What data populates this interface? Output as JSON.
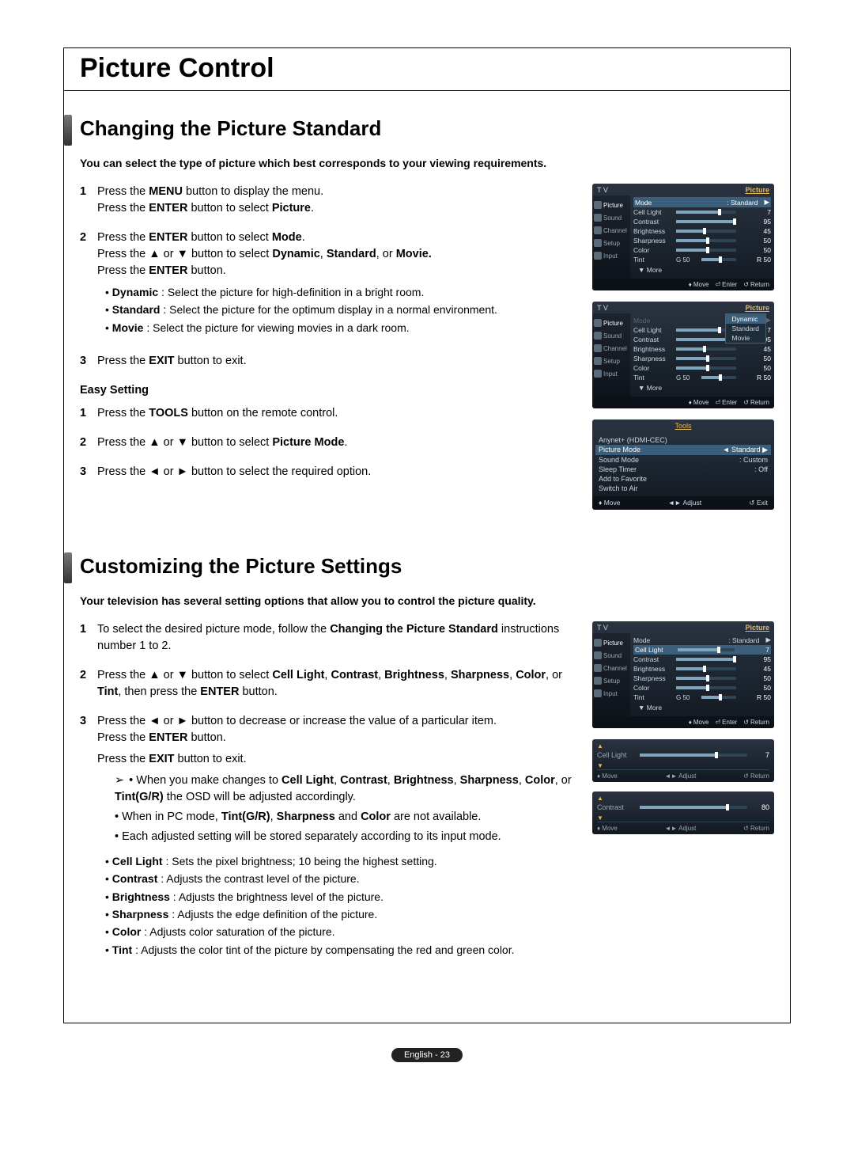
{
  "page": {
    "title": "Picture Control",
    "footer": "English - 23"
  },
  "section1": {
    "heading": "Changing the Picture Standard",
    "intro": "You can select the type of picture which best corresponds to your viewing requirements.",
    "step1a": "Press the ",
    "step1a_b": "MENU",
    "step1a2": " button to display the menu.",
    "step1b": "Press the ",
    "step1b_b": "ENTER",
    "step1b2": " button to select ",
    "step1b_b2": "Picture",
    "step1b3": ".",
    "step2a": "Press the ",
    "step2a_b": "ENTER",
    "step2a2": " button to select ",
    "step2a_b2": "Mode",
    "step2a3": ".",
    "step2b": "Press the ▲ or ▼ button to select ",
    "step2b_b1": "Dynamic",
    "step2b_m1": ", ",
    "step2b_b2": "Standard",
    "step2b_m2": ", or ",
    "step2b_b3": "Movie.",
    "step2c": "Press the ",
    "step2c_b": "ENTER",
    "step2c2": " button.",
    "b1_b": "Dynamic",
    "b1": " : Select the picture for high-definition in a bright room.",
    "b2_b": "Standard",
    "b2": " : Select the picture for the optimum display in a normal environment.",
    "b3_b": "Movie",
    "b3": " : Select the picture for viewing movies in a dark room.",
    "step3": "Press the ",
    "step3_b": "EXIT",
    "step3_2": " button to exit.",
    "easy_h": "Easy Setting",
    "e1": "Press the ",
    "e1_b": "TOOLS",
    "e1_2": " button on the remote control.",
    "e2": "Press the ▲ or ▼ button to select ",
    "e2_b": "Picture Mode",
    "e2_2": ".",
    "e3": "Press the ◄ or ► button to select the required option."
  },
  "section2": {
    "heading": "Customizing the Picture Settings",
    "intro": "Your television has several setting options that allow you to control the picture quality.",
    "s1a": "To select the desired picture mode, follow the ",
    "s1b": "Changing the Picture Standard",
    "s1c": " instructions number 1 to 2.",
    "s2a": "Press the ▲ or ▼ button to select ",
    "s2b": "Cell Light",
    "s2m1": ", ",
    "s2c": "Contrast",
    "s2m2": ", ",
    "s2d": "Brightness",
    "s2m3": ", ",
    "s2e": "Sharpness",
    "s2m4": ", ",
    "s2f": "Color",
    "s2m5": ", or ",
    "s2g": "Tint",
    "s2m6": ", then press the ",
    "s2h": "ENTER",
    "s2m7": " button.",
    "s3a": "Press the ◄ or ► button to decrease or increase the value of a particular item.",
    "s3b": "Press the ",
    "s3c": "ENTER",
    "s3d": " button.",
    "s3e": "Press the ",
    "s3f": "EXIT",
    "s3g": " button to exit.",
    "n1a": "When you make changes to ",
    "n1b": "Cell Light",
    "n1m1": ", ",
    "n1c": "Contrast",
    "n1m2": ", ",
    "n1d": "Brightness",
    "n1m3": ", ",
    "n1e": "Sharpness",
    "n1m4": ", ",
    "n1f": "Color",
    "n1m5": ", or ",
    "n1g": "Tint(G/R)",
    "n1m6": " the OSD will be adjusted accordingly.",
    "n2a": "When in PC mode, ",
    "n2b": "Tint(G/R)",
    "n2m1": ", ",
    "n2c": "Sharpness",
    "n2m2": " and ",
    "n2d": "Color",
    "n2m3": " are not available.",
    "n3": "Each adjusted setting will be stored separately according to its input mode.",
    "d1_b": "Cell Light",
    "d1": " : Sets the pixel brightness; 10 being the highest setting.",
    "d2_b": "Contrast",
    "d2": " : Adjusts the contrast level of the picture.",
    "d3_b": "Brightness",
    "d3": " : Adjusts the brightness level of the picture.",
    "d4_b": "Sharpness",
    "d4": " : Adjusts the edge definition of the picture.",
    "d5_b": "Color",
    "d5": " : Adjusts color saturation of the picture.",
    "d6_b": "Tint",
    "d6": " : Adjusts the color tint of the picture by compensating the red and green color."
  },
  "osd": {
    "tv": "T V",
    "picture": "Picture",
    "side": [
      "Picture",
      "Sound",
      "Channel",
      "Setup",
      "Input"
    ],
    "rows": [
      {
        "lbl": "Mode",
        "text": ": Standard",
        "arrow": true
      },
      {
        "lbl": "Cell Light",
        "pct": 70,
        "val": "7"
      },
      {
        "lbl": "Contrast",
        "pct": 95,
        "val": "95"
      },
      {
        "lbl": "Brightness",
        "pct": 45,
        "val": "45"
      },
      {
        "lbl": "Sharpness",
        "pct": 50,
        "val": "50"
      },
      {
        "lbl": "Color",
        "pct": 50,
        "val": "50"
      },
      {
        "lbl": "Tint",
        "pre": "G 50",
        "pct": 50,
        "val": "R 50"
      }
    ],
    "more": "▼ More",
    "foot_move": "Move",
    "foot_enter": "Enter",
    "foot_return": "Return",
    "dd_opts": [
      "Dynamic",
      "Standard",
      "Movie"
    ],
    "tools": {
      "title": "Tools",
      "items": [
        {
          "l": "Anynet+ (HDMI-CEC)",
          "r": ""
        },
        {
          "l": "Picture Mode",
          "r": "Standard",
          "sel": true,
          "arrows": true
        },
        {
          "l": "Sound Mode",
          "r": "Custom"
        },
        {
          "l": "Sleep Timer",
          "r": "Off"
        },
        {
          "l": "Add to Favorite",
          "r": ""
        },
        {
          "l": "Switch to Air",
          "r": ""
        }
      ],
      "foot": [
        "Move",
        "Adjust",
        "Exit"
      ]
    },
    "slim": [
      {
        "lbl": "Cell Light",
        "pct": 70,
        "val": "7"
      },
      {
        "lbl": "Contrast",
        "pct": 80,
        "val": "80"
      }
    ],
    "slim_foot": [
      "Move",
      "Adjust",
      "Return"
    ],
    "osd3_hi": "Cell Light"
  }
}
